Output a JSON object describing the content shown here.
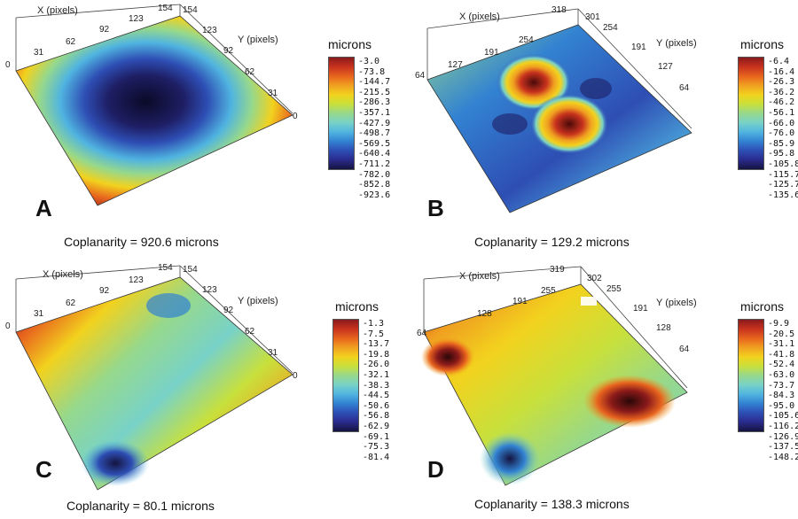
{
  "panels": [
    {
      "id": "A",
      "letter": "A",
      "coplanarity": "Coplanarity = 920.6 microns",
      "x_axis_title": "X (pixels)",
      "y_axis_title": "Y (pixels)",
      "x_ticks": [
        "0",
        "31",
        "62",
        "92",
        "123",
        "154"
      ],
      "y_ticks": [
        "154",
        "123",
        "92",
        "62",
        "31",
        "0"
      ],
      "colorbar_title": "microns",
      "colorbar_labels": [
        "-3.0",
        "-73.8",
        "-144.7",
        "-215.5",
        "-286.3",
        "-357.1",
        "-427.9",
        "-498.7",
        "-569.5",
        "-640.4",
        "-711.2",
        "-782.0",
        "-852.8",
        "-923.6"
      ]
    },
    {
      "id": "B",
      "letter": "B",
      "coplanarity": "Coplanarity = 129.2 microns",
      "x_axis_title": "X (pixels)",
      "y_axis_title": "Y (pixels)",
      "x_ticks": [
        "64",
        "127",
        "191",
        "254",
        "318"
      ],
      "y_ticks": [
        "301",
        "254",
        "191",
        "127",
        "64"
      ],
      "colorbar_title": "microns",
      "colorbar_labels": [
        "-6.4",
        "-16.4",
        "-26.3",
        "-36.2",
        "-46.2",
        "-56.1",
        "-66.0",
        "-76.0",
        "-85.9",
        "-95.8",
        "-105.8",
        "-115.7",
        "-125.7",
        "-135.6"
      ]
    },
    {
      "id": "C",
      "letter": "C",
      "coplanarity": "Coplanarity = 80.1 microns",
      "x_axis_title": "X (pixels)",
      "y_axis_title": "Y (pixels)",
      "x_ticks": [
        "0",
        "31",
        "62",
        "92",
        "123",
        "154"
      ],
      "y_ticks": [
        "154",
        "123",
        "92",
        "62",
        "31",
        "0"
      ],
      "colorbar_title": "microns",
      "colorbar_labels": [
        "-1.3",
        "-7.5",
        "-13.7",
        "-19.8",
        "-26.0",
        "-32.1",
        "-38.3",
        "-44.5",
        "-50.6",
        "-56.8",
        "-62.9",
        "-69.1",
        "-75.3",
        "-81.4"
      ]
    },
    {
      "id": "D",
      "letter": "D",
      "coplanarity": "Coplanarity = 138.3 microns",
      "x_axis_title": "X (pixels)",
      "y_axis_title": "Y (pixels)",
      "x_ticks": [
        "64",
        "128",
        "191",
        "255",
        "319"
      ],
      "y_ticks": [
        "302",
        "255",
        "191",
        "128",
        "64"
      ],
      "colorbar_title": "microns",
      "colorbar_labels": [
        "-9.9",
        "-20.5",
        "-31.1",
        "-41.8",
        "-52.4",
        "-63.0",
        "-73.7",
        "-84.3",
        "-95.0",
        "-105.6",
        "-116.2",
        "-126.9",
        "-137.5",
        "-148.2"
      ]
    }
  ],
  "colormap": [
    "#8b1a1a",
    "#c8321e",
    "#e8641e",
    "#f0a020",
    "#f2d21e",
    "#c8e03c",
    "#96d88c",
    "#78d2c8",
    "#50b4e0",
    "#3282d2",
    "#2e4eb4",
    "#2a2a8c",
    "#141440"
  ]
}
